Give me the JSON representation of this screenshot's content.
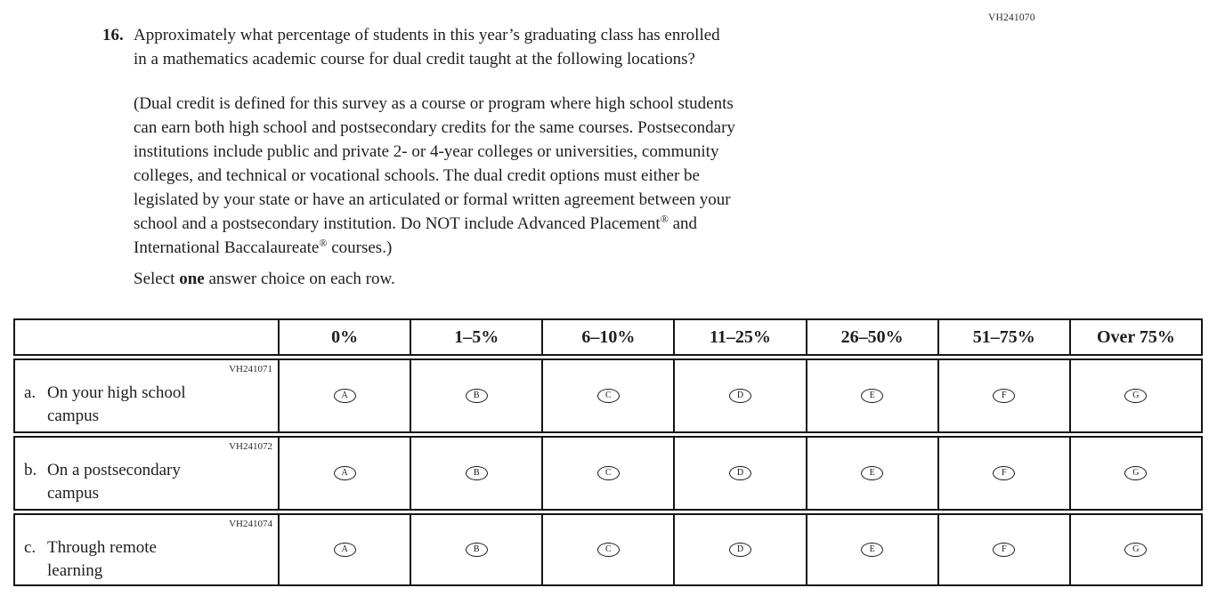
{
  "page": {
    "form_code": "VH241070"
  },
  "question": {
    "number": "16.",
    "text": "Approximately what percentage of students in this year’s graduating class has enrolled\nin a mathematics academic course for dual credit taught at the following locations?",
    "definition": {
      "part1": "(Dual credit is defined for this survey as a course or program where high school students\ncan earn both high school and postsecondary credits for the same courses. Postsecondary\ninstitutions include public and private 2- or 4-year colleges or universities, community\ncolleges, and technical or vocational schools. The dual credit options must either be\nlegislated by your state or have an articulated or formal written agreement between your\nschool and a postsecondary institution. Do NOT include Advanced Placement",
      "reg1": "®",
      "part2": " and\nInternational Baccalaureate",
      "reg2": "®",
      "part3": " courses.)"
    },
    "instruction": {
      "pre": "Select ",
      "bold": "one",
      "post": " answer choice on each row."
    }
  },
  "table": {
    "column_headers": [
      "0%",
      "1–5%",
      "6–10%",
      "11–25%",
      "26–50%",
      "51–75%",
      "Over 75%"
    ],
    "options": [
      "A",
      "B",
      "C",
      "D",
      "E",
      "F",
      "G"
    ],
    "rows": [
      {
        "code": "VH241071",
        "letter": "a.",
        "label": "On your high school\ncampus"
      },
      {
        "code": "VH241072",
        "letter": "b.",
        "label": "On a postsecondary\ncampus"
      },
      {
        "code": "VH241074",
        "letter": "c.",
        "label": "Through remote\nlearning"
      }
    ]
  },
  "colors": {
    "text": "#1e1e1e",
    "border": "#141414",
    "background": "#ffffff"
  }
}
